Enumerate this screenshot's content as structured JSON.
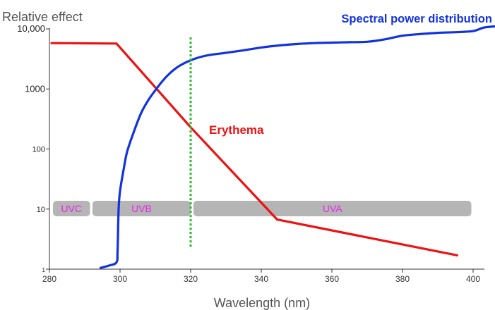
{
  "chart_data": {
    "type": "line",
    "ylabel": "Relative effect",
    "xlabel": "Wavelength (nm)",
    "y_scale": "log",
    "xlim": [
      280,
      406
    ],
    "ylim": [
      1,
      10000
    ],
    "x_ticks": [
      {
        "value": 280,
        "label": "280"
      },
      {
        "value": 300,
        "label": "300"
      },
      {
        "value": 320,
        "label": "320"
      },
      {
        "value": 340,
        "label": "340"
      },
      {
        "value": 360,
        "label": "360"
      },
      {
        "value": 380,
        "label": "380"
      },
      {
        "value": 400,
        "label": "400"
      }
    ],
    "y_ticks": [
      {
        "value": 1,
        "label": "1"
      },
      {
        "value": 10,
        "label": "10"
      },
      {
        "value": 100,
        "label": "100"
      },
      {
        "value": 1000,
        "label": "1000"
      },
      {
        "value": 10000,
        "label": "10,000"
      }
    ],
    "series": [
      {
        "name": "Erythema",
        "color": "#ee1111",
        "points": [
          [
            280.6,
            5800
          ],
          [
            299,
            5700
          ],
          [
            320,
            230
          ],
          [
            344.5,
            6.7
          ],
          [
            395.5,
            1.7
          ]
        ]
      },
      {
        "name": "Spectral power distribution",
        "color": "#1133dd",
        "points": [
          [
            294.5,
            1.05
          ],
          [
            297,
            1.15
          ],
          [
            299,
            1.3
          ],
          [
            299.3,
            2
          ],
          [
            299.6,
            10
          ],
          [
            300,
            20
          ],
          [
            301,
            45
          ],
          [
            302,
            90
          ],
          [
            304,
            200
          ],
          [
            306,
            400
          ],
          [
            308,
            650
          ],
          [
            310,
            950
          ],
          [
            312,
            1350
          ],
          [
            314,
            1800
          ],
          [
            316,
            2250
          ],
          [
            318,
            2650
          ],
          [
            320,
            3000
          ],
          [
            322,
            3300
          ],
          [
            325,
            3650
          ],
          [
            330,
            4000
          ],
          [
            335,
            4400
          ],
          [
            340,
            4900
          ],
          [
            345,
            5300
          ],
          [
            350,
            5600
          ],
          [
            355,
            5800
          ],
          [
            360,
            5900
          ],
          [
            365,
            6000
          ],
          [
            370,
            6100
          ],
          [
            375,
            6700
          ],
          [
            380,
            7700
          ],
          [
            385,
            8200
          ],
          [
            390,
            8600
          ],
          [
            395,
            8800
          ],
          [
            400,
            9200
          ],
          [
            403,
            10500
          ],
          [
            406,
            11000
          ]
        ]
      }
    ],
    "bands": [
      {
        "label": "UVC",
        "x0": 281,
        "x1": 291.5
      },
      {
        "label": "UVB",
        "x0": 292.2,
        "x1": 320
      },
      {
        "label": "UVA",
        "x0": 320.8,
        "x1": 399.5
      }
    ],
    "band_level": 10.2,
    "marker": {
      "x": 320,
      "y0": 2.2,
      "y1": 7200,
      "color": "#22bb22"
    }
  }
}
